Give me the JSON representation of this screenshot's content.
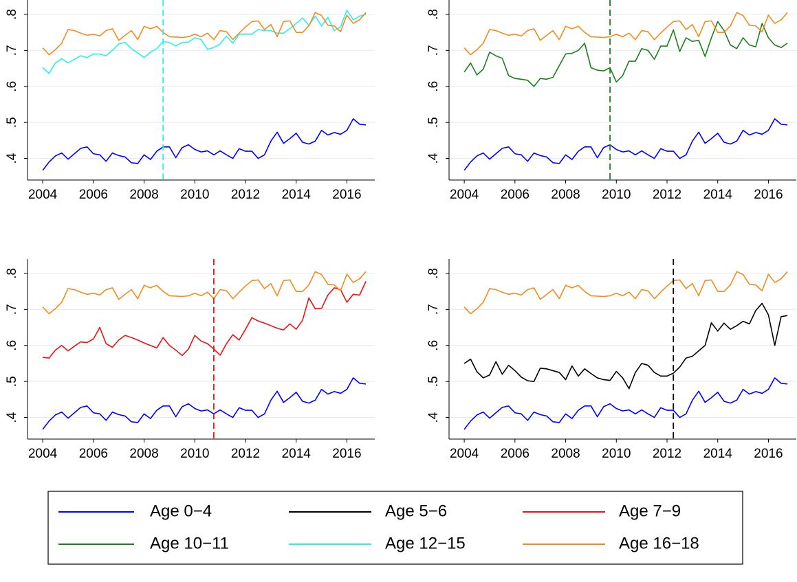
{
  "chart_data": [
    {
      "type": "line",
      "x": [
        2004,
        2004.25,
        2004.5,
        2004.75,
        2005,
        2005.25,
        2005.5,
        2005.75,
        2006,
        2006.25,
        2006.5,
        2006.75,
        2007,
        2007.25,
        2007.5,
        2007.75,
        2008,
        2008.25,
        2008.5,
        2008.75,
        2009,
        2009.25,
        2009.5,
        2009.75,
        2010,
        2010.25,
        2010.5,
        2010.75,
        2011,
        2011.25,
        2011.5,
        2011.75,
        2012,
        2012.25,
        2012.5,
        2012.75,
        2013,
        2013.25,
        2013.5,
        2013.75,
        2014,
        2014.25,
        2014.5,
        2014.75,
        2015,
        2015.25,
        2015.5,
        2015.75,
        2016,
        2016.25,
        2016.5,
        2016.75
      ],
      "series": [
        {
          "name": "Age 0-4",
          "color": "#0000ff",
          "values": [
            0.367,
            0.39,
            0.407,
            0.415,
            0.398,
            0.413,
            0.428,
            0.432,
            0.413,
            0.41,
            0.392,
            0.415,
            0.408,
            0.404,
            0.388,
            0.386,
            0.41,
            0.397,
            0.42,
            0.432,
            0.432,
            0.402,
            0.43,
            0.438,
            0.425,
            0.418,
            0.421,
            0.41,
            0.421,
            0.41,
            0.4,
            0.427,
            0.42,
            0.42,
            0.4,
            0.41,
            0.448,
            0.473,
            0.442,
            0.455,
            0.47,
            0.445,
            0.44,
            0.448,
            0.478,
            0.465,
            0.472,
            0.467,
            0.478,
            0.51,
            0.495,
            0.493
          ]
        },
        {
          "name": "Age 12-15",
          "color": "#26f2f2",
          "values": [
            0.652,
            0.636,
            0.665,
            0.677,
            0.665,
            0.675,
            0.685,
            0.68,
            0.69,
            0.69,
            0.685,
            0.7,
            0.718,
            0.722,
            0.705,
            0.693,
            0.68,
            0.695,
            0.705,
            0.725,
            0.722,
            0.712,
            0.722,
            0.723,
            0.735,
            0.73,
            0.703,
            0.708,
            0.718,
            0.74,
            0.72,
            0.745,
            0.745,
            0.745,
            0.758,
            0.755,
            0.755,
            0.748,
            0.748,
            0.76,
            0.775,
            0.79,
            0.77,
            0.795,
            0.768,
            0.792,
            0.755,
            0.765,
            0.812,
            0.785,
            0.795,
            0.8
          ]
        },
        {
          "name": "Age 16-18",
          "color": "#f28c1c",
          "values": [
            0.707,
            0.688,
            0.702,
            0.72,
            0.758,
            0.755,
            0.748,
            0.742,
            0.745,
            0.74,
            0.755,
            0.76,
            0.728,
            0.742,
            0.755,
            0.73,
            0.767,
            0.76,
            0.767,
            0.75,
            0.738,
            0.737,
            0.736,
            0.738,
            0.745,
            0.738,
            0.748,
            0.73,
            0.755,
            0.752,
            0.73,
            0.748,
            0.765,
            0.78,
            0.782,
            0.758,
            0.772,
            0.738,
            0.78,
            0.782,
            0.75,
            0.75,
            0.768,
            0.805,
            0.797,
            0.77,
            0.768,
            0.752,
            0.798,
            0.775,
            0.785,
            0.805
          ]
        }
      ],
      "vline": {
        "x": 2008.75,
        "color": "#26f2f2"
      },
      "xlim": [
        2003.4,
        2017.1
      ],
      "xticks": [
        2004,
        2006,
        2008,
        2010,
        2012,
        2014,
        2016
      ],
      "ylim": [
        0.34,
        0.84
      ],
      "yticks": [
        {
          "value": 0.4,
          "label": ".4"
        },
        {
          "value": 0.5,
          "label": ".5"
        },
        {
          "value": 0.6,
          "label": ".6"
        },
        {
          "value": 0.7,
          "label": ".7"
        },
        {
          "value": 0.8,
          "label": ".8"
        }
      ],
      "grid": true
    },
    {
      "type": "line",
      "x": [
        2004,
        2004.25,
        2004.5,
        2004.75,
        2005,
        2005.25,
        2005.5,
        2005.75,
        2006,
        2006.25,
        2006.5,
        2006.75,
        2007,
        2007.25,
        2007.5,
        2007.75,
        2008,
        2008.25,
        2008.5,
        2008.75,
        2009,
        2009.25,
        2009.5,
        2009.75,
        2010,
        2010.25,
        2010.5,
        2010.75,
        2011,
        2011.25,
        2011.5,
        2011.75,
        2012,
        2012.25,
        2012.5,
        2012.75,
        2013,
        2013.25,
        2013.5,
        2013.75,
        2014,
        2014.25,
        2014.5,
        2014.75,
        2015,
        2015.25,
        2015.5,
        2015.75,
        2016,
        2016.25,
        2016.5,
        2016.75
      ],
      "series": [
        {
          "name": "Age 0-4",
          "color": "#0000ff",
          "values": [
            0.367,
            0.39,
            0.407,
            0.415,
            0.398,
            0.413,
            0.428,
            0.432,
            0.413,
            0.41,
            0.392,
            0.415,
            0.408,
            0.404,
            0.388,
            0.386,
            0.41,
            0.397,
            0.42,
            0.432,
            0.432,
            0.402,
            0.43,
            0.438,
            0.425,
            0.418,
            0.421,
            0.41,
            0.421,
            0.41,
            0.4,
            0.427,
            0.42,
            0.42,
            0.4,
            0.41,
            0.448,
            0.473,
            0.442,
            0.455,
            0.47,
            0.445,
            0.44,
            0.448,
            0.478,
            0.465,
            0.472,
            0.467,
            0.478,
            0.51,
            0.495,
            0.493
          ]
        },
        {
          "name": "Age 10-11",
          "color": "#1a801a",
          "values": [
            0.64,
            0.665,
            0.632,
            0.648,
            0.695,
            0.685,
            0.678,
            0.63,
            0.622,
            0.62,
            0.617,
            0.6,
            0.622,
            0.62,
            0.625,
            0.658,
            0.69,
            0.692,
            0.7,
            0.72,
            0.652,
            0.645,
            0.643,
            0.652,
            0.612,
            0.63,
            0.67,
            0.67,
            0.705,
            0.7,
            0.675,
            0.712,
            0.712,
            0.757,
            0.697,
            0.735,
            0.725,
            0.728,
            0.683,
            0.735,
            0.78,
            0.755,
            0.715,
            0.705,
            0.735,
            0.715,
            0.71,
            0.775,
            0.735,
            0.715,
            0.708,
            0.72
          ]
        },
        {
          "name": "Age 16-18",
          "color": "#f28c1c",
          "values": [
            0.707,
            0.688,
            0.702,
            0.72,
            0.758,
            0.755,
            0.748,
            0.742,
            0.745,
            0.74,
            0.755,
            0.76,
            0.728,
            0.742,
            0.755,
            0.73,
            0.767,
            0.76,
            0.767,
            0.75,
            0.738,
            0.737,
            0.736,
            0.738,
            0.745,
            0.738,
            0.748,
            0.73,
            0.755,
            0.752,
            0.73,
            0.748,
            0.765,
            0.78,
            0.782,
            0.758,
            0.772,
            0.738,
            0.78,
            0.782,
            0.75,
            0.75,
            0.768,
            0.805,
            0.797,
            0.77,
            0.768,
            0.752,
            0.798,
            0.775,
            0.785,
            0.805
          ]
        }
      ],
      "vline": {
        "x": 2009.75,
        "color": "#1a801a"
      },
      "xlim": [
        2003.4,
        2017.1
      ],
      "xticks": [
        2004,
        2006,
        2008,
        2010,
        2012,
        2014,
        2016
      ],
      "ylim": [
        0.34,
        0.84
      ],
      "yticks": [
        {
          "value": 0.4,
          "label": ".4"
        },
        {
          "value": 0.5,
          "label": ".5"
        },
        {
          "value": 0.6,
          "label": ".6"
        },
        {
          "value": 0.7,
          "label": ".7"
        },
        {
          "value": 0.8,
          "label": ".8"
        }
      ],
      "grid": true
    },
    {
      "type": "line",
      "x": [
        2004,
        2004.25,
        2004.5,
        2004.75,
        2005,
        2005.25,
        2005.5,
        2005.75,
        2006,
        2006.25,
        2006.5,
        2006.75,
        2007,
        2007.25,
        2007.5,
        2007.75,
        2008,
        2008.25,
        2008.5,
        2008.75,
        2009,
        2009.25,
        2009.5,
        2009.75,
        2010,
        2010.25,
        2010.5,
        2010.75,
        2011,
        2011.25,
        2011.5,
        2011.75,
        2012,
        2012.25,
        2012.5,
        2012.75,
        2013,
        2013.25,
        2013.5,
        2013.75,
        2014,
        2014.25,
        2014.5,
        2014.75,
        2015,
        2015.25,
        2015.5,
        2015.75,
        2016,
        2016.25,
        2016.5,
        2016.75
      ],
      "series": [
        {
          "name": "Age 0-4",
          "color": "#0000ff",
          "values": [
            0.367,
            0.39,
            0.407,
            0.415,
            0.398,
            0.413,
            0.428,
            0.432,
            0.413,
            0.41,
            0.392,
            0.415,
            0.408,
            0.404,
            0.388,
            0.386,
            0.41,
            0.397,
            0.42,
            0.432,
            0.432,
            0.402,
            0.43,
            0.438,
            0.425,
            0.418,
            0.421,
            0.41,
            0.421,
            0.41,
            0.4,
            0.427,
            0.42,
            0.42,
            0.4,
            0.41,
            0.448,
            0.473,
            0.442,
            0.455,
            0.47,
            0.445,
            0.44,
            0.448,
            0.478,
            0.465,
            0.472,
            0.467,
            0.478,
            0.51,
            0.495,
            0.493
          ]
        },
        {
          "name": "Age 7-9",
          "color": "#f01010",
          "values": [
            0.567,
            0.565,
            0.587,
            0.6,
            0.585,
            0.598,
            0.61,
            0.608,
            0.618,
            0.65,
            0.605,
            0.595,
            0.615,
            0.628,
            0.622,
            0.615,
            0.607,
            0.6,
            0.593,
            0.622,
            0.6,
            0.587,
            0.572,
            0.59,
            0.628,
            0.612,
            0.605,
            0.59,
            0.573,
            0.605,
            0.63,
            0.615,
            0.645,
            0.677,
            0.668,
            0.662,
            0.655,
            0.648,
            0.643,
            0.66,
            0.645,
            0.67,
            0.732,
            0.702,
            0.703,
            0.74,
            0.76,
            0.755,
            0.72,
            0.742,
            0.74,
            0.778
          ]
        },
        {
          "name": "Age 16-18",
          "color": "#f28c1c",
          "values": [
            0.707,
            0.688,
            0.702,
            0.72,
            0.758,
            0.755,
            0.748,
            0.742,
            0.745,
            0.74,
            0.755,
            0.76,
            0.728,
            0.742,
            0.755,
            0.73,
            0.767,
            0.76,
            0.767,
            0.75,
            0.738,
            0.737,
            0.736,
            0.738,
            0.745,
            0.738,
            0.748,
            0.73,
            0.755,
            0.752,
            0.73,
            0.748,
            0.765,
            0.78,
            0.782,
            0.758,
            0.772,
            0.738,
            0.78,
            0.782,
            0.75,
            0.75,
            0.768,
            0.805,
            0.797,
            0.77,
            0.768,
            0.752,
            0.798,
            0.775,
            0.785,
            0.805
          ]
        }
      ],
      "vline": {
        "x": 2010.75,
        "color": "#f01010"
      },
      "xlim": [
        2003.4,
        2017.1
      ],
      "xticks": [
        2004,
        2006,
        2008,
        2010,
        2012,
        2014,
        2016
      ],
      "ylim": [
        0.34,
        0.84
      ],
      "yticks": [
        {
          "value": 0.4,
          "label": ".4"
        },
        {
          "value": 0.5,
          "label": ".5"
        },
        {
          "value": 0.6,
          "label": ".6"
        },
        {
          "value": 0.7,
          "label": ".7"
        },
        {
          "value": 0.8,
          "label": ".8"
        }
      ],
      "grid": true
    },
    {
      "type": "line",
      "x": [
        2004,
        2004.25,
        2004.5,
        2004.75,
        2005,
        2005.25,
        2005.5,
        2005.75,
        2006,
        2006.25,
        2006.5,
        2006.75,
        2007,
        2007.25,
        2007.5,
        2007.75,
        2008,
        2008.25,
        2008.5,
        2008.75,
        2009,
        2009.25,
        2009.5,
        2009.75,
        2010,
        2010.25,
        2010.5,
        2010.75,
        2011,
        2011.25,
        2011.5,
        2011.75,
        2012,
        2012.25,
        2012.5,
        2012.75,
        2013,
        2013.25,
        2013.5,
        2013.75,
        2014,
        2014.25,
        2014.5,
        2014.75,
        2015,
        2015.25,
        2015.5,
        2015.75,
        2016,
        2016.25,
        2016.5,
        2016.75
      ],
      "series": [
        {
          "name": "Age 0-4",
          "color": "#0000ff",
          "values": [
            0.367,
            0.39,
            0.407,
            0.415,
            0.398,
            0.413,
            0.428,
            0.432,
            0.413,
            0.41,
            0.392,
            0.415,
            0.408,
            0.404,
            0.388,
            0.386,
            0.41,
            0.397,
            0.42,
            0.432,
            0.432,
            0.402,
            0.43,
            0.438,
            0.425,
            0.418,
            0.421,
            0.41,
            0.421,
            0.41,
            0.4,
            0.427,
            0.42,
            0.42,
            0.4,
            0.41,
            0.448,
            0.473,
            0.442,
            0.455,
            0.47,
            0.445,
            0.44,
            0.448,
            0.478,
            0.465,
            0.472,
            0.467,
            0.478,
            0.51,
            0.495,
            0.493
          ]
        },
        {
          "name": "Age 5-6",
          "color": "#000000",
          "values": [
            0.55,
            0.562,
            0.527,
            0.51,
            0.518,
            0.555,
            0.52,
            0.545,
            0.53,
            0.512,
            0.502,
            0.5,
            0.537,
            0.535,
            0.53,
            0.525,
            0.505,
            0.543,
            0.515,
            0.535,
            0.522,
            0.51,
            0.505,
            0.503,
            0.528,
            0.51,
            0.48,
            0.525,
            0.55,
            0.545,
            0.525,
            0.515,
            0.515,
            0.523,
            0.54,
            0.565,
            0.57,
            0.585,
            0.6,
            0.663,
            0.64,
            0.662,
            0.645,
            0.655,
            0.667,
            0.66,
            0.697,
            0.717,
            0.685,
            0.6,
            0.68,
            0.683
          ]
        },
        {
          "name": "Age 16-18",
          "color": "#f28c1c",
          "values": [
            0.707,
            0.688,
            0.702,
            0.72,
            0.758,
            0.755,
            0.748,
            0.742,
            0.745,
            0.74,
            0.755,
            0.76,
            0.728,
            0.742,
            0.755,
            0.73,
            0.767,
            0.76,
            0.767,
            0.75,
            0.738,
            0.737,
            0.736,
            0.738,
            0.745,
            0.738,
            0.748,
            0.73,
            0.755,
            0.752,
            0.73,
            0.748,
            0.765,
            0.78,
            0.782,
            0.758,
            0.772,
            0.738,
            0.78,
            0.782,
            0.75,
            0.75,
            0.768,
            0.805,
            0.797,
            0.77,
            0.768,
            0.752,
            0.798,
            0.775,
            0.785,
            0.805
          ]
        }
      ],
      "vline": {
        "x": 2012.25,
        "color": "#000000"
      },
      "xlim": [
        2003.4,
        2017.1
      ],
      "xticks": [
        2004,
        2006,
        2008,
        2010,
        2012,
        2014,
        2016
      ],
      "ylim": [
        0.34,
        0.84
      ],
      "yticks": [
        {
          "value": 0.4,
          "label": ".4"
        },
        {
          "value": 0.5,
          "label": ".5"
        },
        {
          "value": 0.6,
          "label": ".6"
        },
        {
          "value": 0.7,
          "label": ".7"
        },
        {
          "value": 0.8,
          "label": ".8"
        }
      ],
      "grid": true
    }
  ],
  "legend": [
    {
      "name": "Age 0−4",
      "color": "#0000ff"
    },
    {
      "name": "Age 5−6",
      "color": "#000000"
    },
    {
      "name": "Age 7−9",
      "color": "#f01010"
    },
    {
      "name": "Age 10−11",
      "color": "#1a801a"
    },
    {
      "name": "Age 12−15",
      "color": "#26f2f2"
    },
    {
      "name": "Age 16−18",
      "color": "#f28c1c"
    }
  ]
}
